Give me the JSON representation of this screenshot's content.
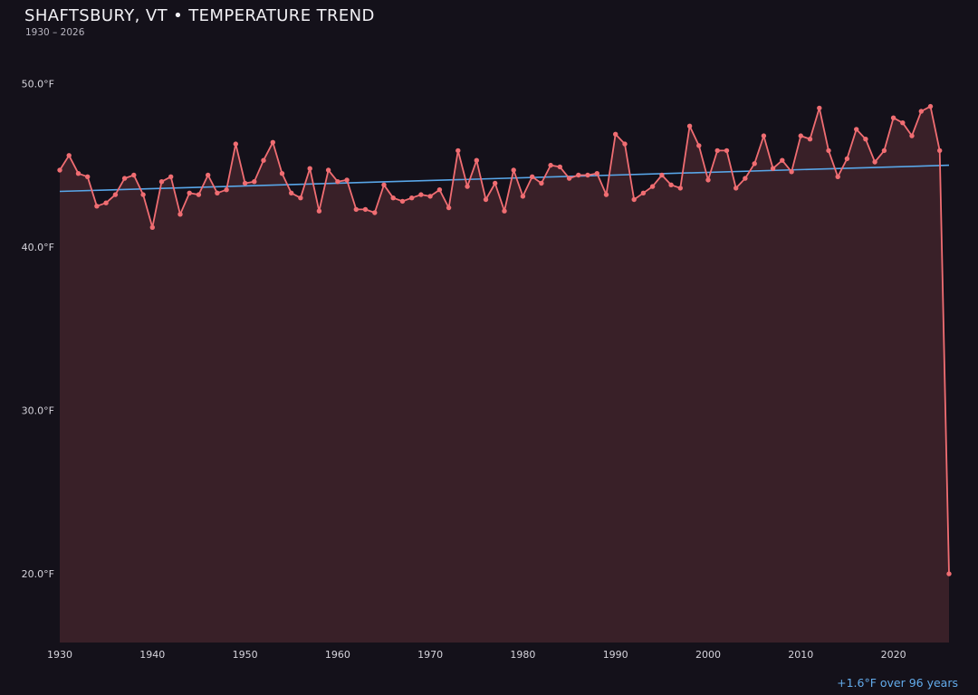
{
  "header": {
    "title": "SHAFTSBURY, VT • TEMPERATURE TREND",
    "subtitle": "1930 – 2026"
  },
  "footer": {
    "trend_note": "+1.6°F over 96 years"
  },
  "colors": {
    "background": "#14111a",
    "line": "#f06d72",
    "area": "rgba(242,106,112,0.17)",
    "trend": "#58a6e8",
    "title_text": "#f2f1f5",
    "tick_text": "#d6d4dc"
  },
  "chart_data": {
    "type": "line",
    "title": "SHAFTSBURY, VT • TEMPERATURE TREND",
    "subtitle": "1930 – 2026",
    "xlabel": "",
    "ylabel": "",
    "xlim": [
      1930,
      2026.2
    ],
    "ylim": [
      15.8,
      51.9
    ],
    "x_ticks": [
      1930,
      1940,
      1950,
      1960,
      1970,
      1980,
      1990,
      2000,
      2010,
      2020
    ],
    "x_tick_labels": [
      "1930",
      "1940",
      "1950",
      "1960",
      "1970",
      "1980",
      "1990",
      "2000",
      "2010",
      "2020"
    ],
    "y_ticks": [
      50,
      40,
      30,
      20
    ],
    "y_tick_labels": [
      "50.0°F",
      "40.0°F",
      "30.0°F",
      "20.0°F"
    ],
    "grid": false,
    "legend": false,
    "trend": {
      "x": [
        1930,
        2026
      ],
      "y": [
        43.4,
        45.0
      ]
    },
    "x": [
      1930,
      1931,
      1932,
      1933,
      1934,
      1935,
      1936,
      1937,
      1938,
      1939,
      1940,
      1941,
      1942,
      1943,
      1944,
      1945,
      1946,
      1947,
      1948,
      1949,
      1950,
      1951,
      1952,
      1953,
      1954,
      1955,
      1956,
      1957,
      1958,
      1959,
      1960,
      1961,
      1962,
      1963,
      1964,
      1965,
      1966,
      1967,
      1968,
      1969,
      1970,
      1971,
      1972,
      1973,
      1974,
      1975,
      1976,
      1977,
      1978,
      1979,
      1980,
      1981,
      1982,
      1983,
      1984,
      1985,
      1986,
      1987,
      1988,
      1989,
      1990,
      1991,
      1992,
      1993,
      1994,
      1995,
      1996,
      1997,
      1998,
      1999,
      2000,
      2001,
      2002,
      2003,
      2004,
      2005,
      2006,
      2007,
      2008,
      2009,
      2010,
      2011,
      2012,
      2013,
      2014,
      2015,
      2016,
      2017,
      2018,
      2019,
      2020,
      2021,
      2022,
      2023,
      2024,
      2025,
      2026
    ],
    "values": [
      44.7,
      45.6,
      44.5,
      44.3,
      42.5,
      42.7,
      43.2,
      44.2,
      44.4,
      43.2,
      41.2,
      44.0,
      44.3,
      42.0,
      43.3,
      43.2,
      44.4,
      43.3,
      43.5,
      46.3,
      43.9,
      44.0,
      45.3,
      46.4,
      44.5,
      43.3,
      43.0,
      44.8,
      42.2,
      44.7,
      44.0,
      44.1,
      42.3,
      42.3,
      42.1,
      43.8,
      43.0,
      42.8,
      43.0,
      43.2,
      43.1,
      43.5,
      42.4,
      45.9,
      43.7,
      45.3,
      42.9,
      43.9,
      42.2,
      44.7,
      43.1,
      44.3,
      43.9,
      45.0,
      44.9,
      44.2,
      44.4,
      44.4,
      44.5,
      43.2,
      46.9,
      46.3,
      42.9,
      43.3,
      43.7,
      44.4,
      43.8,
      43.6,
      47.4,
      46.2,
      44.1,
      45.9,
      45.9,
      43.6,
      44.2,
      45.1,
      46.8,
      44.8,
      45.3,
      44.6,
      46.8,
      46.6,
      48.5,
      45.9,
      44.3,
      45.4,
      47.2,
      46.6,
      45.2,
      45.9,
      47.9,
      47.6,
      46.8,
      48.3,
      48.6,
      45.9,
      20.0
    ]
  }
}
